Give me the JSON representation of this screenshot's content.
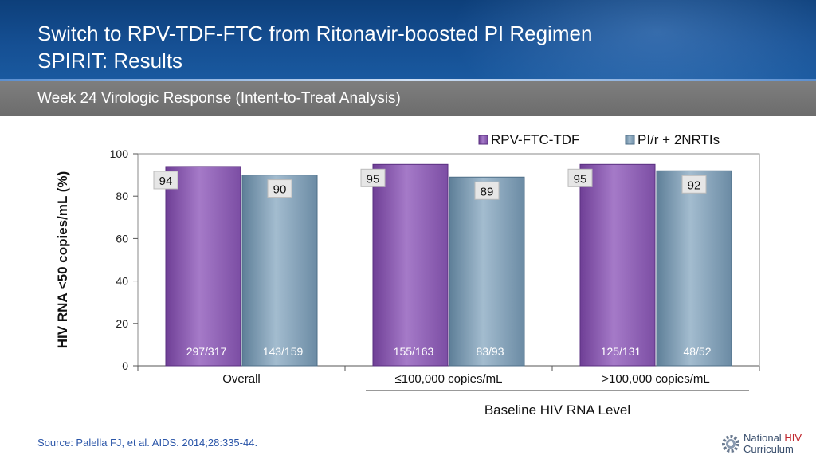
{
  "header": {
    "title_line1": "Switch to RPV-TDF-FTC from Ritonavir-boosted PI Regimen",
    "title_line2": "SPIRIT: Results",
    "subtitle": "Week 24 Virologic Response (Intent-to-Treat Analysis)"
  },
  "footer": {
    "source": "Source: Palella FJ, et al. AIDS. 2014;28:335-44.",
    "logo_line1_a": "National ",
    "logo_line1_b": "HIV",
    "logo_line2": "Curriculum"
  },
  "colors": {
    "series1": "#8e5fb2",
    "series2": "#7a9ab3"
  },
  "chart_data": {
    "type": "bar",
    "categories": [
      "Overall",
      "≤100,000 copies/mL",
      ">100,000 copies/mL"
    ],
    "series": [
      {
        "name": "RPV-FTC-TDF",
        "values": [
          94,
          95,
          95
        ],
        "counts": [
          "297/317",
          "155/163",
          "125/131"
        ]
      },
      {
        "name": "PI/r + 2NRTIs",
        "values": [
          90,
          89,
          92
        ],
        "counts": [
          "143/159",
          "83/93",
          "48/52"
        ]
      }
    ],
    "ylabel": "HIV RNA <50 copies/mL (%)",
    "xlabel": "Baseline HIV RNA Level",
    "ylim": [
      0,
      100
    ],
    "yticks": [
      0,
      20,
      40,
      60,
      80,
      100
    ],
    "legend": "top-right",
    "grid": false
  }
}
